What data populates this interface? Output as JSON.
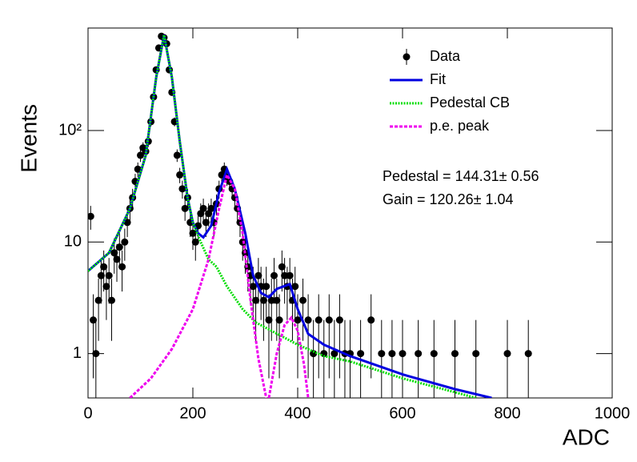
{
  "chart_data": {
    "type": "scatter",
    "xlabel": "ADC",
    "ylabel": "Events",
    "xlim": [
      0,
      1000
    ],
    "ylim": [
      0.4,
      830
    ],
    "log_y": true,
    "xticks": [
      0,
      200,
      400,
      600,
      800,
      1000
    ],
    "yticks": [
      1,
      10,
      {
        "value": 100,
        "label": "10²"
      }
    ],
    "legend": "top-right",
    "annotations": [
      "Pedestal = 144.31± 0.56",
      "Gain = 120.26± 1.04"
    ],
    "series": [
      {
        "name": "Data",
        "style": "points",
        "color": "#000000",
        "x": [
          5,
          10,
          15,
          20,
          25,
          30,
          35,
          40,
          45,
          50,
          55,
          60,
          65,
          70,
          75,
          80,
          85,
          90,
          95,
          100,
          105,
          110,
          115,
          120,
          125,
          130,
          135,
          140,
          145,
          150,
          155,
          160,
          165,
          170,
          175,
          180,
          185,
          190,
          195,
          200,
          205,
          210,
          215,
          220,
          225,
          230,
          235,
          240,
          245,
          250,
          255,
          260,
          265,
          270,
          275,
          280,
          285,
          290,
          295,
          300,
          305,
          310,
          315,
          320,
          325,
          330,
          335,
          340,
          345,
          350,
          355,
          360,
          365,
          370,
          375,
          380,
          385,
          390,
          395,
          400,
          410,
          420,
          430,
          440,
          450,
          460,
          470,
          480,
          490,
          500,
          520,
          540,
          560,
          580,
          600,
          630,
          660,
          700,
          740,
          800,
          840
        ],
        "values": [
          17,
          2,
          1,
          3,
          5,
          6,
          4,
          5,
          3,
          8,
          7,
          9,
          6,
          10,
          15,
          20,
          25,
          35,
          45,
          60,
          70,
          65,
          80,
          120,
          200,
          350,
          550,
          700,
          680,
          600,
          350,
          220,
          120,
          60,
          40,
          30,
          20,
          25,
          15,
          12,
          10,
          14,
          18,
          20,
          15,
          18,
          20,
          15,
          22,
          30,
          40,
          45,
          38,
          35,
          30,
          25,
          20,
          15,
          10,
          8,
          6,
          5,
          4,
          3,
          5,
          4,
          3,
          4,
          2,
          3,
          5,
          3,
          2,
          6,
          5,
          4,
          5,
          3,
          4,
          2,
          3,
          2,
          1,
          2,
          1,
          2,
          1,
          2,
          1,
          1,
          1,
          2,
          1,
          1,
          1,
          1,
          1,
          1,
          1,
          1,
          1
        ],
        "errors": [
          4.1,
          1.4,
          1,
          1.7,
          2.2,
          2.4,
          2,
          2.2,
          1.7,
          2.8,
          2.6,
          3,
          2.4,
          3.2,
          3.9,
          4.5,
          5,
          5.9,
          6.7,
          7.7,
          8.4,
          8.1,
          8.9,
          11,
          14,
          19,
          23,
          26,
          26,
          24,
          19,
          15,
          11,
          7.7,
          6.3,
          5.5,
          4.5,
          5,
          3.9,
          3.5,
          3.2,
          3.7,
          4.2,
          4.5,
          3.9,
          4.2,
          4.5,
          3.9,
          4.7,
          5.5,
          6.3,
          6.7,
          6.2,
          5.9,
          5.5,
          5,
          4.5,
          3.9,
          3.2,
          2.8,
          2.4,
          2.2,
          2,
          1.7,
          2.2,
          2,
          1.7,
          2,
          1.4,
          1.7,
          2.2,
          1.7,
          1.4,
          2.4,
          2.2,
          2,
          2.2,
          1.7,
          2,
          1.4,
          1.7,
          1.4,
          1,
          1.4,
          1,
          1.4,
          1,
          1.4,
          1,
          1,
          1,
          1.4,
          1,
          1,
          1,
          1,
          1,
          1,
          1,
          1,
          1
        ]
      },
      {
        "name": "Fit",
        "style": "line",
        "color": "#0000e0",
        "x": [
          0,
          40,
          80,
          110,
          130,
          145,
          160,
          175,
          190,
          200,
          210,
          220,
          235,
          250,
          265,
          280,
          300,
          315,
          330,
          345,
          360,
          385,
          400,
          420,
          450,
          500,
          600,
          700,
          770
        ],
        "values": [
          5.5,
          8,
          20,
          60,
          300,
          720,
          300,
          80,
          25,
          15,
          12,
          11,
          14,
          28,
          45,
          30,
          12,
          5,
          3.5,
          3.2,
          3.8,
          4.2,
          2.5,
          1.5,
          1.2,
          0.95,
          0.65,
          0.48,
          0.4
        ]
      },
      {
        "name": "Pedestal CB",
        "style": "dotted",
        "color": "#00dd00",
        "x": [
          0,
          40,
          80,
          110,
          130,
          145,
          160,
          175,
          190,
          200,
          215,
          230,
          245,
          265,
          295,
          320,
          400,
          450,
          500,
          600,
          700,
          740
        ],
        "values": [
          5.5,
          8,
          20,
          60,
          300,
          720,
          300,
          80,
          25,
          15,
          10,
          7,
          6,
          4,
          2.5,
          1.9,
          1.2,
          0.95,
          0.85,
          0.6,
          0.45,
          0.4
        ]
      },
      {
        "name": "p.e. peak",
        "style": "dashed",
        "color": "#ee00ee",
        "x": [
          80,
          120,
          160,
          200,
          230,
          250,
          265,
          280,
          295,
          310,
          325,
          340,
          342,
          345,
          360,
          375,
          388,
          400,
          412,
          420
        ],
        "values": [
          0.4,
          0.6,
          1.1,
          2.5,
          7,
          20,
          40,
          30,
          12,
          3,
          0.9,
          0.4,
          null,
          0.4,
          1,
          1.8,
          2.1,
          1.6,
          0.8,
          0.4
        ]
      }
    ]
  }
}
